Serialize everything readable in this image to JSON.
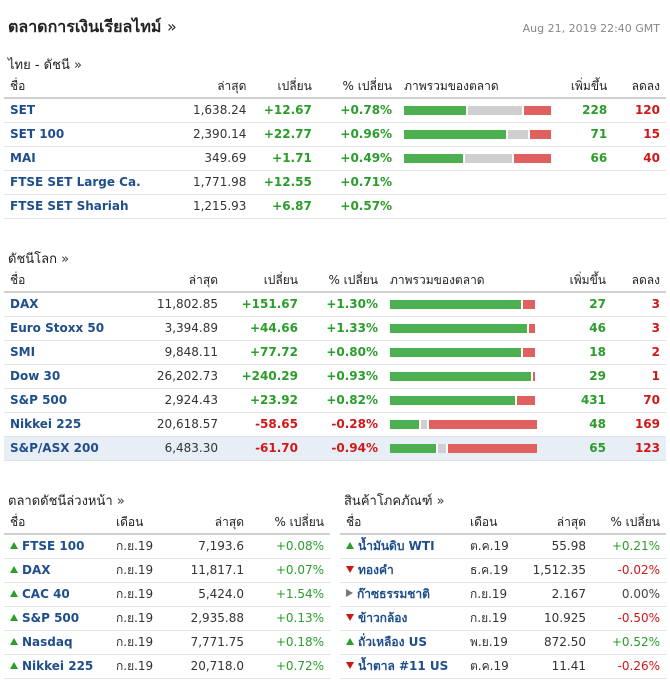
{
  "header": {
    "title": "ตลาดการเงินเรียลไทม์",
    "more": "»",
    "timestamp": "Aug 21, 2019 22:40 GMT"
  },
  "thai": {
    "title": "ไทย - ดัชนี",
    "more": "»",
    "cols": [
      "ชื่อ",
      "ล่าสุด",
      "เปลี่ยน",
      "% เปลี่ยน",
      "ภาพรวมของตลาด",
      "เพิ่มขึ้น",
      "ลดลง"
    ],
    "rows": [
      {
        "name": "SET",
        "last": "1,638.24",
        "chg": "+12.67",
        "pct": "+0.78%",
        "dir": "up",
        "bar": [
          0.42,
          0.37,
          0.21
        ],
        "adv": "228",
        "dec": "120"
      },
      {
        "name": "SET 100",
        "last": "2,390.14",
        "chg": "+22.77",
        "pct": "+0.96%",
        "dir": "up",
        "bar": [
          0.69,
          0.14,
          0.17
        ],
        "adv": "71",
        "dec": "15"
      },
      {
        "name": "MAI",
        "last": "349.69",
        "chg": "+1.71",
        "pct": "+0.49%",
        "dir": "up",
        "bar": [
          0.4,
          0.32,
          0.28
        ],
        "adv": "66",
        "dec": "40"
      },
      {
        "name": "FTSE SET Large Ca.",
        "last": "1,771.98",
        "chg": "+12.55",
        "pct": "+0.71%",
        "dir": "up",
        "bar": null,
        "adv": "",
        "dec": ""
      },
      {
        "name": "FTSE SET Shariah",
        "last": "1,215.93",
        "chg": "+6.87",
        "pct": "+0.57%",
        "dir": "up",
        "bar": null,
        "adv": "",
        "dec": ""
      }
    ]
  },
  "world": {
    "title": "ดัชนีโลก",
    "more": "»",
    "cols": [
      "ชื่อ",
      "ล่าสุด",
      "เปลี่ยน",
      "% เปลี่ยน",
      "ภาพรวมของตลาด",
      "เพิ่มขึ้น",
      "ลดลง"
    ],
    "rows": [
      {
        "name": "DAX",
        "last": "11,802.85",
        "chg": "+151.67",
        "pct": "+1.30%",
        "dir": "up",
        "bar": [
          0.89,
          0.0,
          0.11
        ],
        "adv": "27",
        "dec": "3",
        "hl": false
      },
      {
        "name": "Euro Stoxx 50",
        "last": "3,394.89",
        "chg": "+44.66",
        "pct": "+1.33%",
        "dir": "up",
        "bar": [
          0.93,
          0.0,
          0.07
        ],
        "adv": "46",
        "dec": "3",
        "hl": false
      },
      {
        "name": "SMI",
        "last": "9,848.11",
        "chg": "+77.72",
        "pct": "+0.80%",
        "dir": "up",
        "bar": [
          0.89,
          0.0,
          0.11
        ],
        "adv": "18",
        "dec": "2",
        "hl": false
      },
      {
        "name": "Dow 30",
        "last": "26,202.73",
        "chg": "+240.29",
        "pct": "+0.93%",
        "dir": "up",
        "bar": [
          0.96,
          0.0,
          0.04
        ],
        "adv": "29",
        "dec": "1",
        "hl": false
      },
      {
        "name": "S&P 500",
        "last": "2,924.43",
        "chg": "+23.92",
        "pct": "+0.82%",
        "dir": "up",
        "bar": [
          0.85,
          0.0,
          0.15
        ],
        "adv": "431",
        "dec": "70",
        "hl": false
      },
      {
        "name": "Nikkei 225",
        "last": "20,618.57",
        "chg": "-58.65",
        "pct": "-0.28%",
        "dir": "down",
        "bar": [
          0.2,
          0.04,
          0.76
        ],
        "adv": "48",
        "dec": "169",
        "hl": false
      },
      {
        "name": "S&P/ASX 200",
        "last": "6,483.30",
        "chg": "-61.70",
        "pct": "-0.94%",
        "dir": "down",
        "bar": [
          0.31,
          0.06,
          0.63
        ],
        "adv": "65",
        "dec": "123",
        "hl": true
      }
    ]
  },
  "futures": {
    "title": "ตลาดดัชนีล่วงหน้า",
    "more": "»",
    "cols": [
      "ชื่อ",
      "เดือน",
      "ล่าสุด",
      "% เปลี่ยน"
    ],
    "rows": [
      {
        "name": "FTSE 100",
        "month": "ก.ย.19",
        "last": "7,193.6",
        "pct": "+0.08%",
        "dir": "up"
      },
      {
        "name": "DAX",
        "month": "ก.ย.19",
        "last": "11,817.1",
        "pct": "+0.07%",
        "dir": "up"
      },
      {
        "name": "CAC 40",
        "month": "ก.ย.19",
        "last": "5,424.0",
        "pct": "+1.54%",
        "dir": "up"
      },
      {
        "name": "S&P 500",
        "month": "ก.ย.19",
        "last": "2,935.88",
        "pct": "+0.13%",
        "dir": "up"
      },
      {
        "name": "Nasdaq",
        "month": "ก.ย.19",
        "last": "7,771.75",
        "pct": "+0.18%",
        "dir": "up"
      },
      {
        "name": "Nikkei 225",
        "month": "ก.ย.19",
        "last": "20,718.0",
        "pct": "+0.72%",
        "dir": "up"
      }
    ]
  },
  "commodities": {
    "title": "สินค้าโภคภัณฑ์",
    "more": "»",
    "cols": [
      "ชื่อ",
      "เดือน",
      "ล่าสุด",
      "% เปลี่ยน"
    ],
    "rows": [
      {
        "name": "น้ำมันดิบ WTI",
        "month": "ต.ค.19",
        "last": "55.98",
        "pct": "+0.21%",
        "dir": "up"
      },
      {
        "name": "ทองคำ",
        "month": "ธ.ค.19",
        "last": "1,512.35",
        "pct": "-0.02%",
        "dir": "down"
      },
      {
        "name": "ก๊าซธรรมชาติ",
        "month": "ก.ย.19",
        "last": "2.167",
        "pct": "0.00%",
        "dir": "flat"
      },
      {
        "name": "ข้าวกล้อง",
        "month": "ก.ย.19",
        "last": "10.925",
        "pct": "-0.50%",
        "dir": "down"
      },
      {
        "name": "ถั่วเหลือง US",
        "month": "พ.ย.19",
        "last": "872.50",
        "pct": "+0.52%",
        "dir": "up"
      },
      {
        "name": "น้ำตาล #11 US",
        "month": "ต.ค.19",
        "last": "11.41",
        "pct": "-0.26%",
        "dir": "down"
      }
    ]
  }
}
